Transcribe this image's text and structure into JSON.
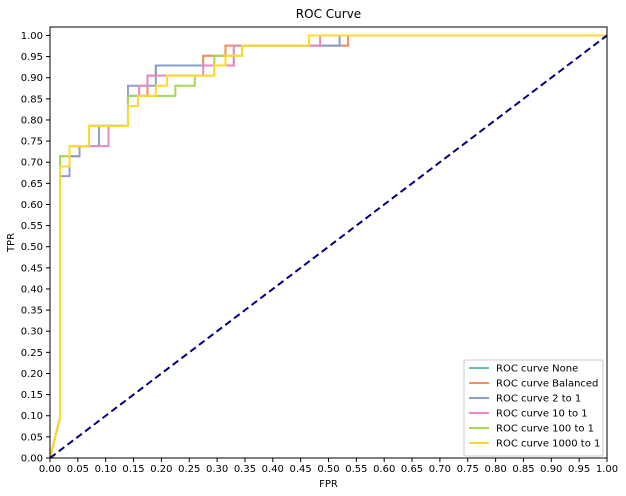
{
  "chart_data": {
    "type": "line",
    "title": "ROC Curve",
    "xlabel": "FPR",
    "ylabel": "TPR",
    "xlim": [
      0.0,
      1.0
    ],
    "ylim": [
      0.0,
      1.02
    ],
    "x_ticks": [
      "0.00",
      "0.05",
      "0.10",
      "0.15",
      "0.20",
      "0.25",
      "0.30",
      "0.35",
      "0.40",
      "0.45",
      "0.50",
      "0.55",
      "0.60",
      "0.65",
      "0.70",
      "0.75",
      "0.80",
      "0.85",
      "0.90",
      "0.95",
      "1.00"
    ],
    "y_ticks": [
      "0.00",
      "0.05",
      "0.10",
      "0.15",
      "0.20",
      "0.25",
      "0.30",
      "0.35",
      "0.40",
      "0.45",
      "0.50",
      "0.55",
      "0.60",
      "0.65",
      "0.70",
      "0.75",
      "0.80",
      "0.85",
      "0.90",
      "0.95",
      "1.00"
    ],
    "grid": false,
    "legend_position": "lower-right",
    "series": [
      {
        "name": "ROC curve None",
        "color": "#66c2a5",
        "x": [
          0,
          0.018,
          0.018,
          0.035,
          0.035,
          0.053,
          0.053,
          0.07,
          0.07,
          0.088,
          0.088,
          0.14,
          0.14,
          0.175,
          0.175,
          0.19,
          0.19,
          0.275,
          0.275,
          0.315,
          0.315,
          0.35,
          0.35,
          0.51,
          0.51,
          0.535,
          0.535,
          1.0
        ],
        "y": [
          0,
          0.095,
          0.69,
          0.69,
          0.714,
          0.714,
          0.738,
          0.738,
          0.786,
          0.786,
          0.786,
          0.786,
          0.857,
          0.857,
          0.905,
          0.905,
          0.929,
          0.929,
          0.952,
          0.952,
          0.976,
          0.976,
          0.976,
          0.976,
          0.976,
          0.976,
          1.0,
          1.0
        ]
      },
      {
        "name": "ROC curve Balanced",
        "color": "#fc8d62",
        "x": [
          0,
          0.018,
          0.018,
          0.035,
          0.035,
          0.053,
          0.053,
          0.07,
          0.07,
          0.088,
          0.088,
          0.14,
          0.14,
          0.175,
          0.175,
          0.19,
          0.19,
          0.275,
          0.275,
          0.315,
          0.315,
          0.35,
          0.35,
          0.51,
          0.51,
          0.535,
          0.535,
          1.0
        ],
        "y": [
          0,
          0.095,
          0.69,
          0.69,
          0.714,
          0.714,
          0.738,
          0.738,
          0.786,
          0.786,
          0.786,
          0.786,
          0.857,
          0.857,
          0.905,
          0.905,
          0.929,
          0.929,
          0.952,
          0.952,
          0.976,
          0.976,
          0.976,
          0.976,
          0.976,
          0.976,
          1.0,
          1.0
        ]
      },
      {
        "name": "ROC curve 2 to 1",
        "color": "#8da0cb",
        "x": [
          0,
          0.018,
          0.018,
          0.035,
          0.035,
          0.053,
          0.053,
          0.088,
          0.088,
          0.14,
          0.14,
          0.19,
          0.19,
          0.275,
          0.275,
          0.33,
          0.33,
          0.35,
          0.35,
          0.465,
          0.465,
          0.52,
          0.52,
          1.0
        ],
        "y": [
          0,
          0.095,
          0.667,
          0.667,
          0.714,
          0.714,
          0.738,
          0.738,
          0.786,
          0.786,
          0.881,
          0.881,
          0.929,
          0.929,
          0.929,
          0.929,
          0.976,
          0.976,
          0.976,
          0.976,
          0.976,
          0.976,
          1.0,
          1.0
        ]
      },
      {
        "name": "ROC curve 10 to 1",
        "color": "#e78ac3",
        "x": [
          0,
          0.018,
          0.018,
          0.035,
          0.035,
          0.053,
          0.053,
          0.07,
          0.07,
          0.105,
          0.105,
          0.14,
          0.14,
          0.16,
          0.16,
          0.175,
          0.175,
          0.275,
          0.275,
          0.33,
          0.33,
          0.35,
          0.35,
          0.485,
          0.485,
          1.0
        ],
        "y": [
          0,
          0.095,
          0.714,
          0.714,
          0.738,
          0.738,
          0.738,
          0.738,
          0.738,
          0.738,
          0.786,
          0.786,
          0.857,
          0.857,
          0.881,
          0.881,
          0.905,
          0.905,
          0.929,
          0.929,
          0.976,
          0.976,
          0.976,
          0.976,
          1.0,
          1.0
        ]
      },
      {
        "name": "ROC curve 100 to 1",
        "color": "#a6d854",
        "x": [
          0,
          0.018,
          0.018,
          0.035,
          0.035,
          0.07,
          0.07,
          0.14,
          0.14,
          0.225,
          0.225,
          0.26,
          0.26,
          0.295,
          0.295,
          0.345,
          0.345,
          0.465,
          0.465,
          1.0
        ],
        "y": [
          0,
          0.095,
          0.714,
          0.714,
          0.738,
          0.738,
          0.786,
          0.786,
          0.857,
          0.857,
          0.881,
          0.881,
          0.905,
          0.905,
          0.952,
          0.952,
          0.976,
          0.976,
          1.0,
          1.0
        ]
      },
      {
        "name": "ROC curve 1000 to 1",
        "color": "#ffd92f",
        "x": [
          0,
          0.018,
          0.018,
          0.035,
          0.035,
          0.07,
          0.07,
          0.14,
          0.14,
          0.158,
          0.158,
          0.19,
          0.19,
          0.21,
          0.21,
          0.28,
          0.28,
          0.295,
          0.295,
          0.315,
          0.315,
          0.345,
          0.345,
          0.465,
          0.465,
          1.0
        ],
        "y": [
          0,
          0.095,
          0.69,
          0.69,
          0.738,
          0.738,
          0.786,
          0.786,
          0.833,
          0.833,
          0.857,
          0.857,
          0.881,
          0.881,
          0.905,
          0.905,
          0.905,
          0.905,
          0.929,
          0.929,
          0.952,
          0.952,
          0.976,
          0.976,
          1.0,
          1.0
        ]
      }
    ],
    "reference_line": {
      "x": [
        0,
        1
      ],
      "y": [
        0,
        1
      ],
      "color": "#000080",
      "style": "dashed"
    }
  }
}
